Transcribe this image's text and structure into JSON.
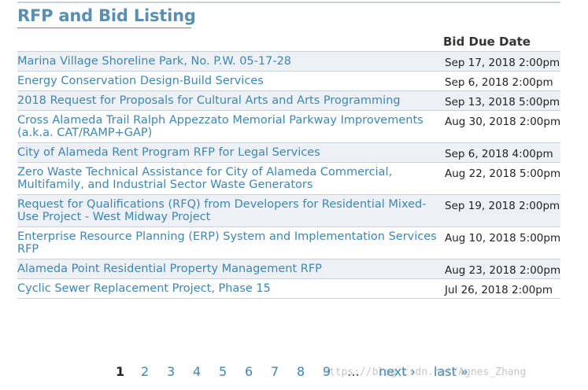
{
  "page": {
    "title": "RFP and Bid Listing",
    "column_header": "Bid Due Date"
  },
  "listings": [
    {
      "name": "Marina Village Shoreline Park, No. P.W. 05-17-28",
      "due": "Sep 17, 2018 2:00pm"
    },
    {
      "name": "Energy Conservation Design-Build Services",
      "due": "Sep 6, 2018 2:00pm"
    },
    {
      "name": "2018 Request for Proposals for Cultural Arts and Arts Programming",
      "due": "Sep 13, 2018 5:00pm"
    },
    {
      "name": "Cross Alameda Trail Ralph Appezzato Memorial Parkway Improvements (a.k.a. CAT/RAMP+GAP)",
      "due": "Aug 30, 2018 2:00pm"
    },
    {
      "name": "City of Alameda Rent Program RFP for Legal Services",
      "due": "Sep 6, 2018 4:00pm"
    },
    {
      "name": "Zero Waste Technical Assistance for City of Alameda Commercial, Multifamily, and Industrial Sector Waste Generators",
      "due": "Aug 22, 2018 5:00pm"
    },
    {
      "name": "Request for Qualifications (RFQ) from Developers for Residential Mixed-Use Project - West Midway Project",
      "due": "Sep 19, 2018 2:00pm"
    },
    {
      "name": "Enterprise Resource Planning (ERP) System and Implementation Services RFP",
      "due": "Aug 10, 2018 5:00pm"
    },
    {
      "name": "Alameda Point Residential Property Management RFP",
      "due": "Aug 23, 2018 2:00pm"
    },
    {
      "name": "Cyclic Sewer Replacement Project, Phase 15",
      "due": "Jul 26, 2018 2:00pm"
    }
  ],
  "pagination": {
    "current": "1",
    "pages": [
      "2",
      "3",
      "4",
      "5",
      "6",
      "7",
      "8",
      "9"
    ],
    "ellipsis": "…",
    "next": "next ›",
    "last": "last »"
  },
  "watermark": "https://blog.csdn.net/Agnes_Zhang",
  "colors": {
    "link": "#3d86b6",
    "title": "#5a8fb0",
    "row_alt": "#edf1f5"
  }
}
